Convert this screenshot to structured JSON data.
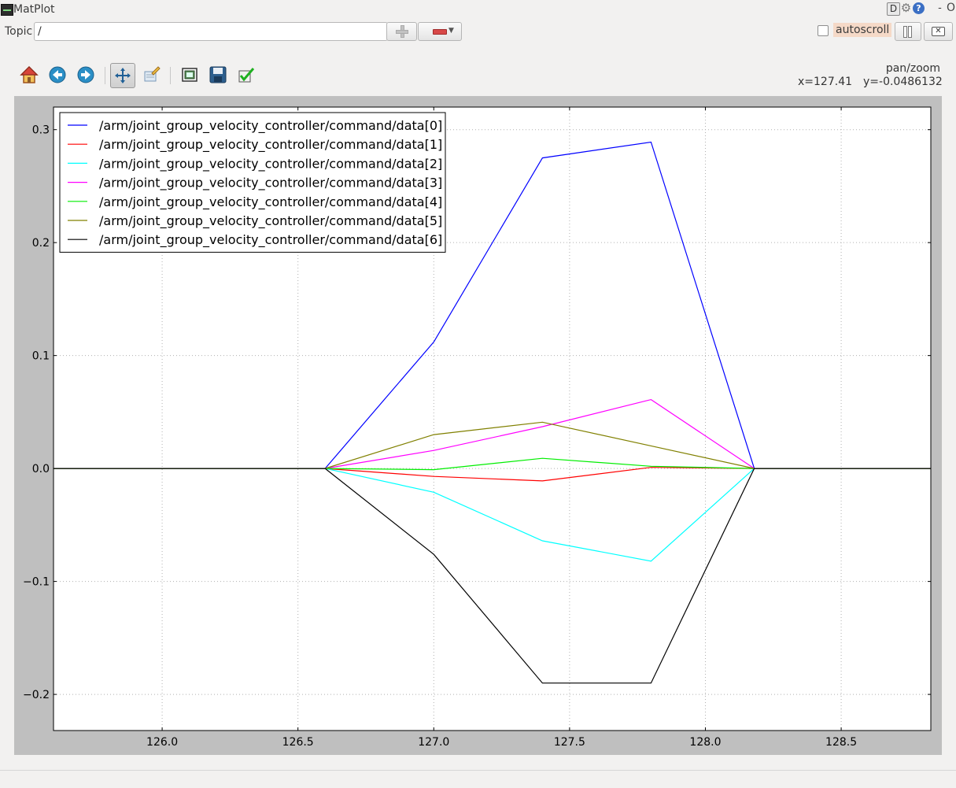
{
  "window": {
    "title": "MatPlot"
  },
  "topic": {
    "label": "Topic",
    "value": "/"
  },
  "autoscroll": {
    "label": "autoscroll",
    "checked": false
  },
  "toolbar": {
    "tools": [
      "home-icon",
      "back-icon",
      "forward-icon",
      "pan-icon",
      "zoom-rect-icon",
      "subplots-icon",
      "save-icon",
      "edit-check-icon"
    ],
    "active": "pan-icon"
  },
  "status": {
    "mode": "pan/zoom",
    "x_readout": "x=127.41",
    "y_readout": "y=-0.0486132"
  },
  "chart_data": {
    "type": "line",
    "xlim": [
      125.6,
      128.83
    ],
    "ylim": [
      -0.232,
      0.32
    ],
    "xticks": [
      126.0,
      126.5,
      127.0,
      127.5,
      128.0,
      128.5
    ],
    "xtick_labels": [
      "126.0",
      "126.5",
      "127.0",
      "127.5",
      "128.0",
      "128.5"
    ],
    "yticks": [
      -0.2,
      -0.1,
      0.0,
      0.1,
      0.2,
      0.3
    ],
    "ytick_labels": [
      "−0.2",
      "−0.1",
      "0.0",
      "0.1",
      "0.2",
      "0.3"
    ],
    "grid": true,
    "legend_position": "top-left",
    "x": [
      125.6,
      126.6,
      127.0,
      127.4,
      127.8,
      128.18,
      128.83
    ],
    "series": [
      {
        "name": "/arm/joint_group_velocity_controller/command/data[0]",
        "color": "#0000ff",
        "values": [
          0,
          0,
          0.112,
          0.275,
          0.289,
          0,
          0
        ]
      },
      {
        "name": "/arm/joint_group_velocity_controller/command/data[1]",
        "color": "#ff0000",
        "values": [
          0,
          0,
          -0.007,
          -0.011,
          0.001,
          0,
          0
        ]
      },
      {
        "name": "/arm/joint_group_velocity_controller/command/data[2]",
        "color": "#00ffff",
        "values": [
          0,
          0,
          -0.021,
          -0.064,
          -0.082,
          0,
          0
        ]
      },
      {
        "name": "/arm/joint_group_velocity_controller/command/data[3]",
        "color": "#ff00ff",
        "values": [
          0,
          0,
          0.016,
          0.037,
          0.061,
          0,
          0
        ]
      },
      {
        "name": "/arm/joint_group_velocity_controller/command/data[4]",
        "color": "#00ee00",
        "values": [
          0,
          0,
          -0.001,
          0.009,
          0.002,
          0,
          0
        ]
      },
      {
        "name": "/arm/joint_group_velocity_controller/command/data[5]",
        "color": "#808000",
        "values": [
          0,
          0,
          0.03,
          0.041,
          0.02,
          0,
          0
        ]
      },
      {
        "name": "/arm/joint_group_velocity_controller/command/data[6]",
        "color": "#000000",
        "values": [
          0,
          0,
          -0.076,
          -0.19,
          -0.19,
          0,
          0
        ]
      }
    ]
  }
}
